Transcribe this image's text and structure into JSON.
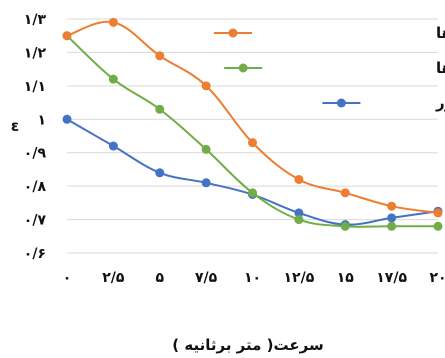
{
  "chart_data": {
    "type": "line",
    "x": [
      "۰",
      "۲/۵",
      "۵",
      "۷/۵",
      "۱۰",
      "۱۲/۵",
      "۱۵",
      "۱۷/۵",
      "۲۰"
    ],
    "x_values": [
      0,
      2.5,
      5,
      7.5,
      10,
      12.5,
      15,
      17.5,
      20
    ],
    "ylabel": "ε",
    "xlabel": "سرعت( متر برثانیه )",
    "ylim": [
      0.6,
      1.3
    ],
    "yticks": [
      {
        "value": 1.3,
        "label": "۱/۳"
      },
      {
        "value": 1.2,
        "label": "۱/۲"
      },
      {
        "value": 1.1,
        "label": "۱/۱"
      },
      {
        "value": 1.0,
        "label": "۱"
      },
      {
        "value": 0.9,
        "label": "۰/۹"
      },
      {
        "value": 0.8,
        "label": "۰/۸"
      },
      {
        "value": 0.7,
        "label": "۰/۷"
      },
      {
        "value": 0.6,
        "label": "۰/۶"
      }
    ],
    "grid": "horizontal",
    "legend_position": "top-right",
    "series": [
      {
        "name": "آرایش عمودی از ACCها",
        "color": "#ED7D31",
        "values": [
          1.25,
          1.29,
          1.19,
          1.1,
          0.93,
          0.82,
          0.78,
          0.74,
          0.72
        ]
      },
      {
        "name": "آرایش افقی از ACCها",
        "color": "#70AD47",
        "values": [
          1.25,
          1.12,
          1.03,
          0.91,
          0.78,
          0.7,
          0.68,
          0.68,
          0.68
        ]
      },
      {
        "name": "کندانسور",
        "color": "#4472C4",
        "values": [
          1.0,
          0.92,
          0.84,
          0.81,
          0.775,
          0.72,
          0.685,
          0.705,
          0.725
        ]
      }
    ]
  }
}
